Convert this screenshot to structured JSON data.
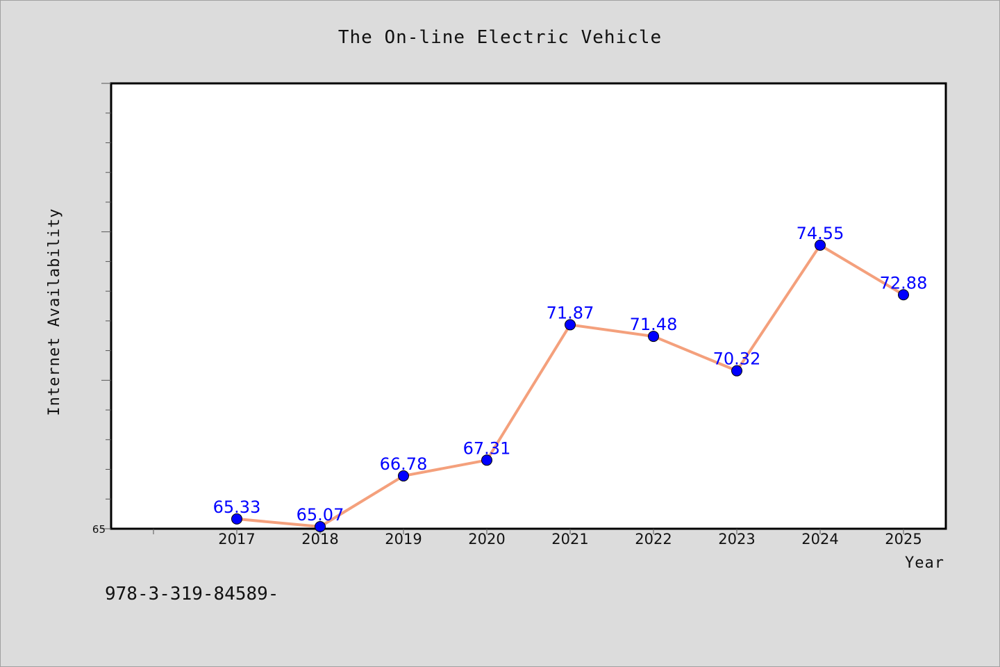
{
  "chart_data": {
    "type": "line",
    "title": "The On-line Electric Vehicle",
    "xlabel": "Year",
    "ylabel": "Internet Availability",
    "categories": [
      "2017",
      "2018",
      "2019",
      "2020",
      "2021",
      "2022",
      "2023",
      "2024",
      "2025"
    ],
    "values": [
      65.33,
      65.07,
      66.78,
      67.31,
      71.87,
      71.48,
      70.32,
      74.55,
      72.88
    ],
    "data_labels": [
      "65.33",
      "65.07",
      "66.78",
      "67.31",
      "71.87",
      "71.48",
      "70.32",
      "74.55",
      "72.88"
    ],
    "ylim": [
      65,
      80
    ],
    "ytick_labels": [
      "65"
    ],
    "line_color": "#f4a07c",
    "marker_color": "#0000ff",
    "label_color": "#0000ff",
    "grid": false,
    "legend": "none"
  },
  "footer": {
    "isbn": "978-3-319-84589-"
  }
}
